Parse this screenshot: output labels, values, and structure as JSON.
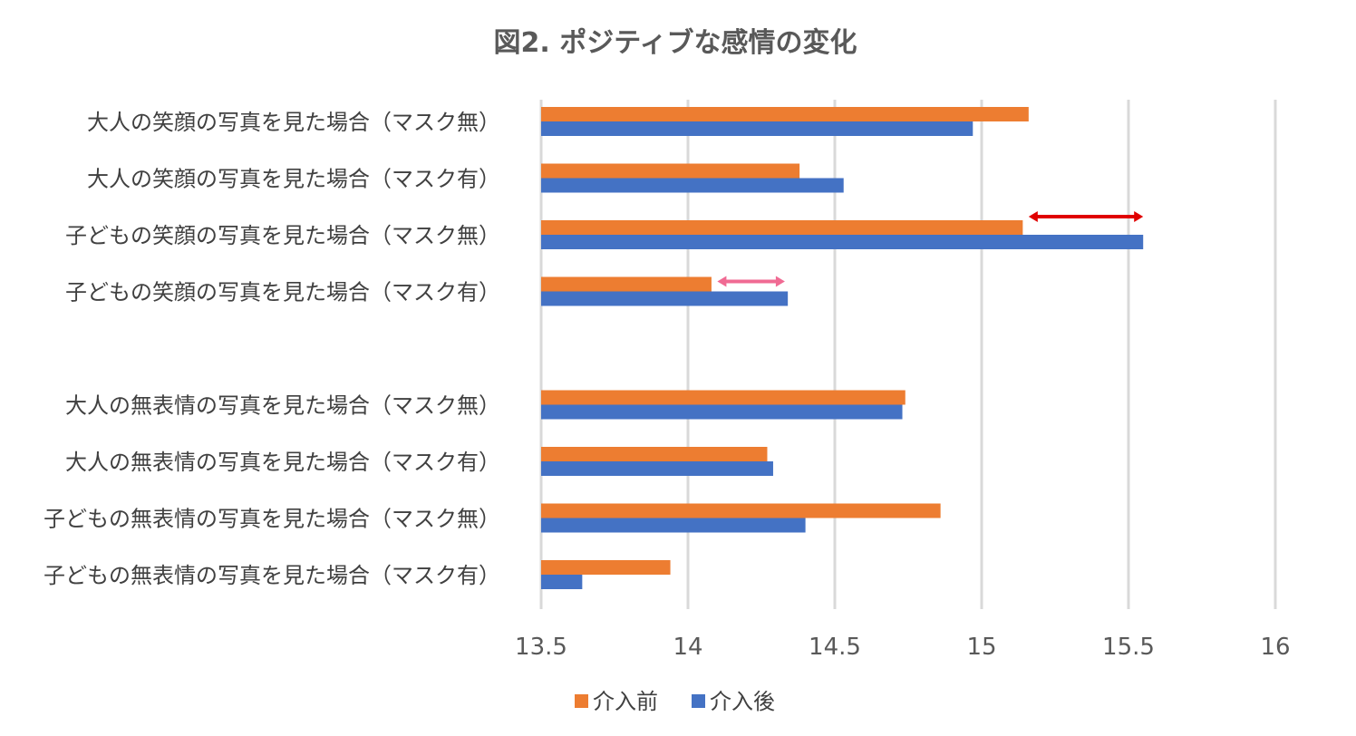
{
  "chart_data": {
    "type": "bar",
    "orientation": "horizontal",
    "title": "図2. ポジティブな感情の変化",
    "xlabel": "",
    "ylabel": "",
    "xlim": [
      13.5,
      16
    ],
    "xticks": [
      13.5,
      14,
      14.5,
      15,
      15.5,
      16
    ],
    "tick_labels": [
      "13.5",
      "14",
      "14.5",
      "15",
      "15.5",
      "16"
    ],
    "grid": true,
    "legend_position": "bottom",
    "categories": [
      "大人の笑顔の写真を見た場合（マスク無）",
      "大人の笑顔の写真を見た場合（マスク有）",
      "子どもの笑顔の写真を見た場合（マスク無）",
      "子どもの笑顔の写真を見た場合（マスク有）",
      "",
      "大人の無表情の写真を見た場合（マスク無）",
      "大人の無表情の写真を見た場合（マスク有）",
      "子どもの無表情の写真を見た場合（マスク無）",
      "子どもの無表情の写真を見た場合（マスク有）"
    ],
    "series": [
      {
        "name": "介入前",
        "color": "#ED7D31",
        "values": [
          15.16,
          14.38,
          15.14,
          14.08,
          null,
          14.74,
          14.27,
          14.86,
          13.94
        ]
      },
      {
        "name": "介入後",
        "color": "#4472C4",
        "values": [
          14.97,
          14.53,
          15.55,
          14.34,
          null,
          14.73,
          14.29,
          14.4,
          13.64
        ]
      }
    ],
    "annotations": [
      {
        "type": "double-arrow",
        "category_index": 2,
        "from": 15.16,
        "to": 15.55,
        "color": "#E00000"
      },
      {
        "type": "double-arrow",
        "category_index": 3,
        "from": 14.1,
        "to": 14.33,
        "color": "#F06A93"
      }
    ]
  }
}
